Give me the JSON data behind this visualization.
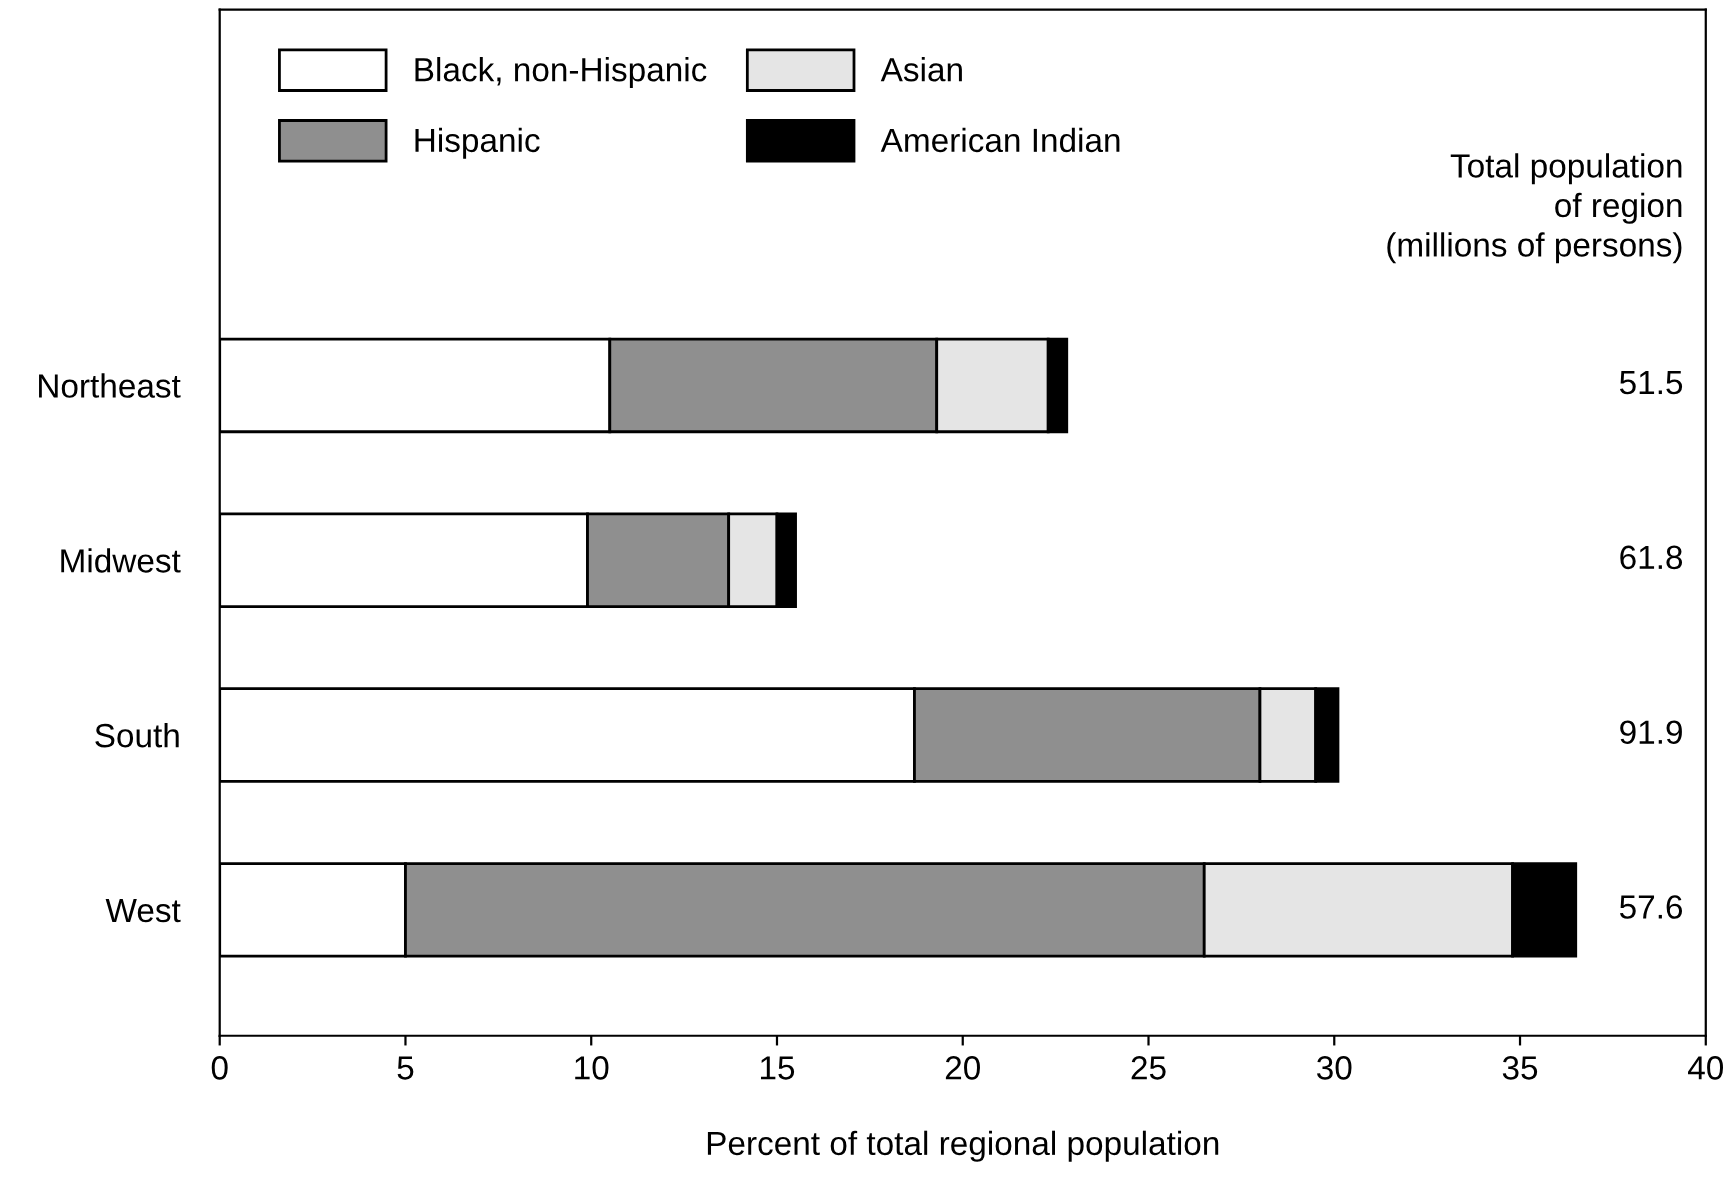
{
  "chart_data": {
    "type": "bar",
    "orientation": "horizontal",
    "stacked": true,
    "categories": [
      "Northeast",
      "Midwest",
      "South",
      "West"
    ],
    "series": [
      {
        "name": "Black, non-Hispanic",
        "color": "#ffffff",
        "values": [
          10.5,
          9.9,
          18.7,
          5.0
        ]
      },
      {
        "name": "Hispanic",
        "color": "#8f8f8f",
        "values": [
          8.8,
          3.8,
          9.3,
          21.5
        ]
      },
      {
        "name": "Asian",
        "color": "#e5e5e5",
        "values": [
          3.0,
          1.3,
          1.5,
          8.3
        ]
      },
      {
        "name": "American Indian",
        "color": "#000000",
        "values": [
          0.5,
          0.5,
          0.6,
          1.7
        ]
      }
    ],
    "xlabel": "Percent of total regional population",
    "xlim": [
      0,
      40
    ],
    "xticks": [
      0,
      5,
      10,
      15,
      20,
      25,
      30,
      35,
      40
    ],
    "legend": "top left",
    "annotations": [
      "Total population\nof region\n(millions of persons)",
      "51.5",
      "61.8",
      "91.9",
      "57.6"
    ]
  }
}
